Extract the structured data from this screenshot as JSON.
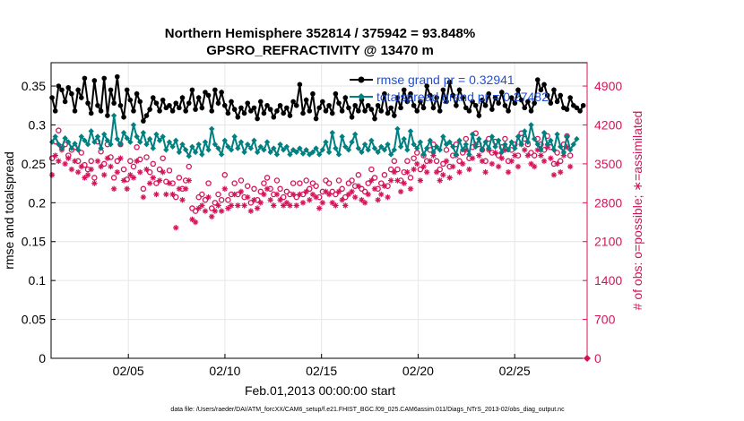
{
  "titles": {
    "line1": "Northern Hemisphere 352814 / 375942 = 93.848%",
    "line2": "GPSRO_REFRACTIVITY @ 13470 m"
  },
  "footer": "data file: /Users/raeder/DAI/ATM_forcXX/CAM6_setup/f.e21.FHIST_BGC.f09_025.CAM6assim.011/Diags_NTrS_2013-02/obs_diag_output.nc",
  "colors": {
    "rmse": "#000000",
    "spread": "#008080",
    "obs": "#d4145a",
    "legend_text": "#1f4fd8"
  },
  "chart_data": {
    "type": "line",
    "xlabel": "Feb.01,2013 00:00:00 start",
    "ylabel_left": "rmse and totalspread",
    "ylabel_right": "# of obs: o=possible; ∗=assimilated",
    "x_ticks": [
      {
        "day": 5,
        "label": "02/05"
      },
      {
        "day": 10,
        "label": "02/10"
      },
      {
        "day": 15,
        "label": "02/15"
      },
      {
        "day": 20,
        "label": "02/20"
      },
      {
        "day": 25,
        "label": "02/25"
      }
    ],
    "xlim_days": [
      1,
      28.75
    ],
    "ylim_left": [
      0,
      0.38
    ],
    "yticks_left": [
      "0",
      "0.05",
      "0.1",
      "0.15",
      "0.2",
      "0.25",
      "0.3",
      "0.35"
    ],
    "ylim_right": [
      0,
      5320
    ],
    "yticks_right": [
      "0",
      "700",
      "1400",
      "2100",
      "2800",
      "3500",
      "4200",
      "4900"
    ],
    "grid": true,
    "legend_placement": "top-right",
    "series": [
      {
        "name": "rmse grand pr = 0.32941",
        "marker": "filled-circle",
        "values": [
          0.335,
          0.318,
          0.35,
          0.345,
          0.33,
          0.348,
          0.34,
          0.318,
          0.345,
          0.335,
          0.36,
          0.328,
          0.315,
          0.357,
          0.325,
          0.318,
          0.36,
          0.312,
          0.345,
          0.328,
          0.362,
          0.325,
          0.31,
          0.345,
          0.332,
          0.318,
          0.34,
          0.33,
          0.305,
          0.312,
          0.32,
          0.335,
          0.328,
          0.318,
          0.332,
          0.322,
          0.325,
          0.318,
          0.328,
          0.322,
          0.335,
          0.318,
          0.328,
          0.345,
          0.32,
          0.335,
          0.322,
          0.342,
          0.338,
          0.318,
          0.345,
          0.328,
          0.342,
          0.325,
          0.315,
          0.33,
          0.32,
          0.31,
          0.322,
          0.315,
          0.328,
          0.318,
          0.322,
          0.308,
          0.33,
          0.315,
          0.325,
          0.32,
          0.31,
          0.318,
          0.325,
          0.315,
          0.322,
          0.312,
          0.33,
          0.325,
          0.352,
          0.315,
          0.332,
          0.318,
          0.34,
          0.308,
          0.322,
          0.33,
          0.318,
          0.325,
          0.315,
          0.34,
          0.328,
          0.318,
          0.335,
          0.322,
          0.31,
          0.325,
          0.318,
          0.332,
          0.318,
          0.325,
          0.32,
          0.308,
          0.325,
          0.318,
          0.34,
          0.315,
          0.322,
          0.312,
          0.335,
          0.322,
          0.345,
          0.33,
          0.34,
          0.325,
          0.318,
          0.33,
          0.322,
          0.35,
          0.338,
          0.322,
          0.335,
          0.318,
          0.345,
          0.33,
          0.355,
          0.338,
          0.325,
          0.345,
          0.335,
          0.322,
          0.318,
          0.33,
          0.325,
          0.312,
          0.332,
          0.325,
          0.34,
          0.32,
          0.335,
          0.328,
          0.342,
          0.325,
          0.318,
          0.335,
          0.328,
          0.345,
          0.332,
          0.322,
          0.33,
          0.318,
          0.328,
          0.358,
          0.345,
          0.352,
          0.338,
          0.328,
          0.345,
          0.33,
          0.338,
          0.322,
          0.32,
          0.335,
          0.325,
          0.322,
          0.318,
          0.325
        ]
      },
      {
        "name": "totalspread grand pr = 0.27482",
        "marker": "filled-diamond",
        "values": [
          0.278,
          0.285,
          0.275,
          0.27,
          0.283,
          0.278,
          0.27,
          0.276,
          0.268,
          0.285,
          0.28,
          0.275,
          0.292,
          0.278,
          0.285,
          0.27,
          0.288,
          0.28,
          0.275,
          0.312,
          0.282,
          0.275,
          0.29,
          0.283,
          0.278,
          0.3,
          0.285,
          0.278,
          0.29,
          0.275,
          0.282,
          0.27,
          0.288,
          0.28,
          0.285,
          0.268,
          0.278,
          0.272,
          0.28,
          0.265,
          0.275,
          0.268,
          0.26,
          0.272,
          0.265,
          0.275,
          0.262,
          0.278,
          0.268,
          0.295,
          0.275,
          0.27,
          0.262,
          0.28,
          0.272,
          0.268,
          0.285,
          0.27,
          0.278,
          0.265,
          0.275,
          0.27,
          0.28,
          0.265,
          0.272,
          0.268,
          0.278,
          0.265,
          0.27,
          0.262,
          0.275,
          0.268,
          0.272,
          0.262,
          0.268,
          0.265,
          0.27,
          0.263,
          0.268,
          0.262,
          0.265,
          0.27,
          0.262,
          0.268,
          0.278,
          0.265,
          0.29,
          0.27,
          0.262,
          0.285,
          0.272,
          0.268,
          0.278,
          0.288,
          0.27,
          0.265,
          0.275,
          0.268,
          0.28,
          0.27,
          0.265,
          0.272,
          0.268,
          0.275,
          0.262,
          0.268,
          0.295,
          0.272,
          0.282,
          0.268,
          0.292,
          0.275,
          0.27,
          0.278,
          0.262,
          0.27,
          0.28,
          0.265,
          0.272,
          0.268,
          0.285,
          0.275,
          0.278,
          0.272,
          0.262,
          0.28,
          0.268,
          0.275,
          0.262,
          0.288,
          0.272,
          0.282,
          0.268,
          0.278,
          0.27,
          0.285,
          0.272,
          0.28,
          0.265,
          0.275,
          0.268,
          0.278,
          0.27,
          0.285,
          0.275,
          0.292,
          0.278,
          0.3,
          0.282,
          0.275,
          0.268,
          0.29,
          0.275,
          0.28,
          0.268,
          0.288,
          0.272,
          0.265,
          0.285,
          0.268,
          0.275,
          0.282
        ]
      }
    ],
    "obs_possible": [
      3600,
      3900,
      4100,
      3800,
      3850,
      3650,
      3750,
      3800,
      3550,
      3700,
      3480,
      3400,
      3550,
      3250,
      3900,
      3720,
      3500,
      3850,
      3620,
      3250,
      3550,
      3850,
      3400,
      3220,
      3550,
      3450,
      3800,
      3580,
      3050,
      3620,
      3350,
      3500,
      3150,
      3400,
      3600,
      3180,
      3380,
      3150,
      2900,
      3250,
      3050,
      3200,
      3450,
      2700,
      2650,
      2900,
      2950,
      2850,
      3150,
      2700,
      2800,
      2950,
      2850,
      3300,
      2850,
      2950,
      3150,
      2950,
      3200,
      2900,
      3100,
      2800,
      3050,
      2850,
      3000,
      3150,
      3250,
      3050,
      2950,
      3200,
      3050,
      2900,
      3000,
      2950,
      3150,
      2900,
      3150,
      2950,
      3200,
      3050,
      3150,
      3100,
      2900,
      3000,
      3200,
      3150,
      3000,
      2950,
      3200,
      3050,
      2900,
      3150,
      3200,
      3100,
      3300,
      3050,
      3000,
      3150,
      3400,
      3250,
      3050,
      3150,
      3300,
      3100,
      3400,
      3550,
      3400,
      3200,
      3350,
      3550,
      3250,
      3600,
      3700,
      3400,
      3650,
      3550,
      3750,
      3850,
      3550,
      3400,
      3500,
      3750,
      3450,
      3650,
      3850,
      3550,
      3700,
      3950,
      3600,
      3800,
      4050,
      3850,
      3750,
      3550,
      3950,
      3700,
      3900,
      3650,
      3800,
      3950,
      3550,
      3750,
      3850,
      3650,
      4050,
      3950,
      3850,
      3700,
      3650,
      3950,
      3850,
      3750,
      4000,
      3800,
      3500,
      3700,
      3550,
      3850,
      4000,
      3650
    ],
    "obs_assimilated": [
      3300,
      3650,
      3550,
      3750,
      3500,
      3600,
      3400,
      3550,
      3350,
      3450,
      3250,
      3300,
      3400,
      3150,
      3550,
      3450,
      3300,
      3600,
      3450,
      3050,
      3350,
      3600,
      3200,
      3050,
      3300,
      3250,
      3550,
      3350,
      2900,
      3400,
      3150,
      3250,
      2950,
      3200,
      3350,
      2950,
      3150,
      2950,
      2350,
      3050,
      2850,
      3050,
      3200,
      2500,
      2450,
      2700,
      2750,
      2650,
      2900,
      2550,
      2650,
      2750,
      2650,
      3050,
      2700,
      2750,
      2950,
      2750,
      3000,
      2750,
      2900,
      2650,
      2850,
      2700,
      2800,
      2950,
      3050,
      2850,
      2750,
      2950,
      2850,
      2750,
      2800,
      2750,
      2950,
      2750,
      2950,
      2800,
      3000,
      2850,
      2950,
      2900,
      2700,
      2800,
      3000,
      2950,
      2800,
      2750,
      3000,
      2850,
      2750,
      2950,
      3000,
      2900,
      3100,
      2850,
      2800,
      2950,
      3200,
      3050,
      2850,
      2950,
      3100,
      2900,
      3200,
      3350,
      3200,
      3000,
      3150,
      3350,
      3050,
      3400,
      3500,
      3200,
      3450,
      3350,
      3550,
      3650,
      3350,
      3200,
      3300,
      3550,
      3250,
      3450,
      3650,
      3350,
      3500,
      3750,
      3400,
      3600,
      3850,
      3650,
      3550,
      3350,
      3750,
      3500,
      3700,
      3450,
      3600,
      3750,
      3350,
      3550,
      3650,
      3450,
      3850,
      3750,
      3650,
      3500,
      3450,
      3750,
      3650,
      3550,
      3800,
      3600,
      3300,
      3500,
      3350,
      3650,
      3800,
      3450
    ]
  }
}
